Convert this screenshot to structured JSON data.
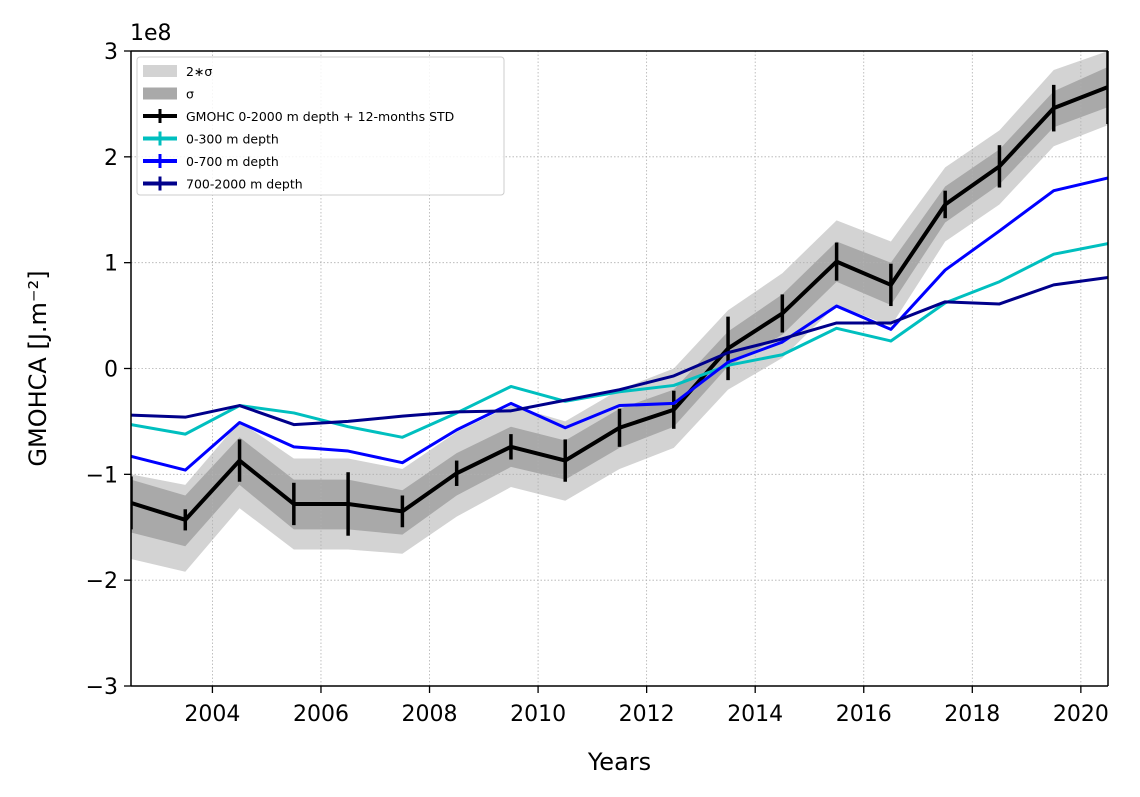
{
  "chart_data": {
    "type": "line",
    "title": "",
    "xlabel": "Years",
    "ylabel": "GMOHCA [J.m⁻²]",
    "y_multiplier": "1e8",
    "xlim": [
      2002.5,
      2020.5
    ],
    "ylim": [
      -3,
      3
    ],
    "y_unit_scale": 100000000,
    "grid": true,
    "legend_position": "upper-left",
    "x_ticks": [
      2004,
      2006,
      2008,
      2010,
      2012,
      2014,
      2016,
      2018,
      2020
    ],
    "x_tick_labels": [
      "2004",
      "2006",
      "2008",
      "2010",
      "2012",
      "2014",
      "2016",
      "2018",
      "2020"
    ],
    "y_ticks": [
      -3,
      -2,
      -1,
      0,
      1,
      2,
      3
    ],
    "y_tick_labels": [
      "−3",
      "−2",
      "−1",
      "0",
      "1",
      "2",
      "3"
    ],
    "x": [
      2002.5,
      2003.5,
      2004.5,
      2005.5,
      2006.5,
      2007.5,
      2008.5,
      2009.5,
      2010.5,
      2011.5,
      2012.5,
      2013.5,
      2014.5,
      2015.5,
      2016.5,
      2017.5,
      2018.5,
      2019.5,
      2020.5
    ],
    "bands": [
      {
        "name": "2∗σ",
        "color": "#d3d3d3",
        "upper": [
          -1.0,
          -1.1,
          -0.5,
          -0.85,
          -0.85,
          -0.95,
          -0.6,
          -0.35,
          -0.5,
          -0.2,
          0.0,
          0.55,
          0.9,
          1.4,
          1.2,
          1.9,
          2.25,
          2.82,
          3.0
        ],
        "lower": [
          -1.8,
          -1.92,
          -1.32,
          -1.71,
          -1.71,
          -1.75,
          -1.4,
          -1.12,
          -1.25,
          -0.95,
          -0.75,
          -0.2,
          0.1,
          0.6,
          0.4,
          1.2,
          1.55,
          2.1,
          2.3
        ]
      },
      {
        "name": "σ",
        "color": "#a9a9a9",
        "upper": [
          -1.05,
          -1.2,
          -0.65,
          -1.05,
          -1.05,
          -1.15,
          -0.8,
          -0.55,
          -0.68,
          -0.38,
          -0.2,
          0.35,
          0.7,
          1.2,
          1.0,
          1.72,
          2.07,
          2.62,
          2.85
        ],
        "lower": [
          -1.55,
          -1.68,
          -1.1,
          -1.52,
          -1.52,
          -1.57,
          -1.2,
          -0.93,
          -1.05,
          -0.75,
          -0.55,
          0.02,
          0.32,
          0.82,
          0.6,
          1.38,
          1.74,
          2.28,
          2.47
        ]
      }
    ],
    "series": [
      {
        "name": "GMOHC 0-2000 m depth + 12-months STD",
        "color": "#000000",
        "width": 4,
        "values": [
          -1.27,
          -1.43,
          -0.87,
          -1.28,
          -1.28,
          -1.35,
          -0.99,
          -0.74,
          -0.87,
          -0.56,
          -0.39,
          0.19,
          0.52,
          1.01,
          0.79,
          1.55,
          1.91,
          2.46,
          2.66
        ],
        "errors": [
          0.25,
          0.1,
          0.2,
          0.2,
          0.3,
          0.15,
          0.12,
          0.12,
          0.2,
          0.18,
          0.18,
          0.3,
          0.18,
          0.18,
          0.2,
          0.13,
          0.2,
          0.22,
          0.35
        ]
      },
      {
        "name": "0-300 m depth",
        "color": "#00bfbf",
        "width": 3,
        "values": [
          -0.53,
          -0.62,
          -0.35,
          -0.42,
          -0.55,
          -0.65,
          -0.42,
          -0.17,
          -0.31,
          -0.22,
          -0.16,
          0.03,
          0.13,
          0.38,
          0.26,
          0.62,
          0.82,
          1.08,
          1.18
        ],
        "errors": []
      },
      {
        "name": "0-700 m depth",
        "color": "#0000ff",
        "width": 3,
        "values": [
          -0.83,
          -0.96,
          -0.51,
          -0.74,
          -0.78,
          -0.89,
          -0.58,
          -0.33,
          -0.56,
          -0.35,
          -0.33,
          0.06,
          0.25,
          0.59,
          0.37,
          0.93,
          1.3,
          1.68,
          1.8
        ],
        "errors": []
      },
      {
        "name": "700-2000 m depth",
        "color": "#00008b",
        "width": 3,
        "values": [
          -0.44,
          -0.46,
          -0.35,
          -0.53,
          -0.5,
          -0.45,
          -0.41,
          -0.4,
          -0.3,
          -0.2,
          -0.07,
          0.15,
          0.28,
          0.43,
          0.43,
          0.63,
          0.61,
          0.79,
          0.86
        ],
        "errors": []
      }
    ]
  }
}
